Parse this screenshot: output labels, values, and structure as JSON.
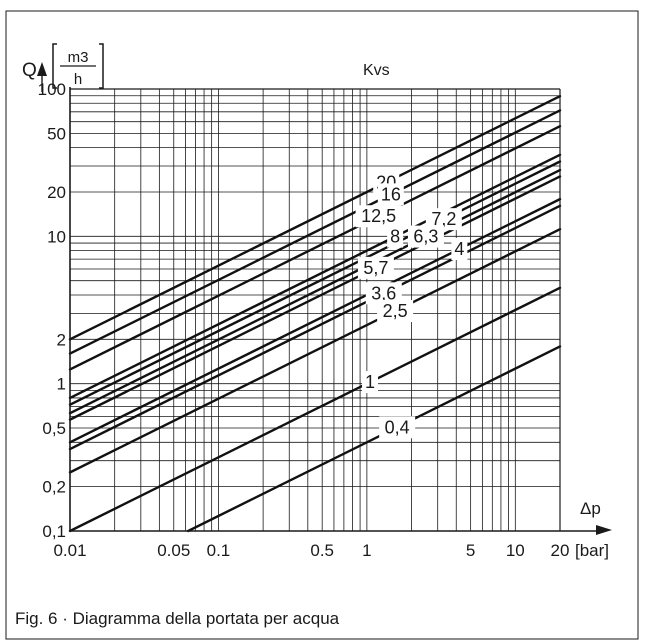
{
  "figure": {
    "caption": "Fig.  6 · Diagramma della portata per acqua"
  },
  "chart_data": {
    "type": "line",
    "x_scale": "log",
    "y_scale": "log",
    "xlim": [
      0.01,
      20
    ],
    "ylim": [
      0.1,
      100
    ],
    "grid": true,
    "y_axis_symbol": "Q",
    "y_unit_numerator": "m3",
    "y_unit_denominator": "h",
    "x_axis_symbol": "Δp",
    "x_unit": "[bar]",
    "legend_title": "Kvs",
    "x_ticks": [
      {
        "value": 0.01,
        "label": "0.01"
      },
      {
        "value": 0.05,
        "label": "0.05"
      },
      {
        "value": 0.1,
        "label": "0.1"
      },
      {
        "value": 0.5,
        "label": "0.5"
      },
      {
        "value": 1,
        "label": "1"
      },
      {
        "value": 5,
        "label": "5"
      },
      {
        "value": 10,
        "label": "10"
      },
      {
        "value": 20,
        "label": "20"
      }
    ],
    "y_ticks": [
      {
        "value": 0.1,
        "label": "0,1"
      },
      {
        "value": 0.2,
        "label": "0,2"
      },
      {
        "value": 0.5,
        "label": "0,5"
      },
      {
        "value": 1,
        "label": "1"
      },
      {
        "value": 2,
        "label": "2"
      },
      {
        "value": 10,
        "label": "10"
      },
      {
        "value": 20,
        "label": "20"
      },
      {
        "value": 50,
        "label": "50"
      },
      {
        "value": 100,
        "label": "100"
      }
    ],
    "series": [
      {
        "name": "20",
        "kvs": 20,
        "label_dp": 1.35
      },
      {
        "name": "16",
        "kvs": 16,
        "label_dp": 1.45
      },
      {
        "name": "12,5",
        "kvs": 12.5,
        "label_dp": 1.2
      },
      {
        "name": "8",
        "kvs": 8,
        "label_dp": 1.55
      },
      {
        "name": "7,2",
        "kvs": 7.2,
        "label_dp": 3.3
      },
      {
        "name": "6,3",
        "kvs": 6.3,
        "label_dp": 2.5
      },
      {
        "name": "5,7",
        "kvs": 5.7,
        "label_dp": 1.15
      },
      {
        "name": "4",
        "kvs": 4,
        "label_dp": 4.2
      },
      {
        "name": "3,6",
        "kvs": 3.6,
        "label_dp": 1.3
      },
      {
        "name": "2,5",
        "kvs": 2.5,
        "label_dp": 1.55
      },
      {
        "name": "1",
        "kvs": 1,
        "label_dp": 1.05
      },
      {
        "name": "0,4",
        "kvs": 0.4,
        "label_dp": 1.6
      }
    ]
  }
}
